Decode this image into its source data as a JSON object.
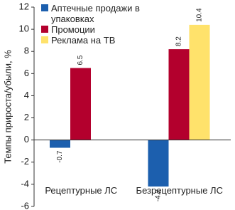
{
  "chart_data": {
    "type": "bar",
    "y_label": "Темпы прироста/убыли, %",
    "categories": [
      "Рецептурные ЛС",
      "Безрецептурные ЛС"
    ],
    "series": [
      {
        "name": "Аптечные продажи в упаковках",
        "color": "#1c5fae",
        "values": [
          -0.7,
          -4.2
        ]
      },
      {
        "name": "Промоции",
        "color": "#b3002d",
        "values": [
          6.5,
          8.2
        ]
      },
      {
        "name": "Реклама на ТВ",
        "color": "#ffe26b",
        "values": [
          null,
          10.4
        ]
      }
    ],
    "ylim": [
      -6,
      12
    ],
    "yticks": [
      -6,
      -4,
      -2,
      0,
      2,
      4,
      6,
      8,
      10,
      12
    ],
    "grid": false
  }
}
